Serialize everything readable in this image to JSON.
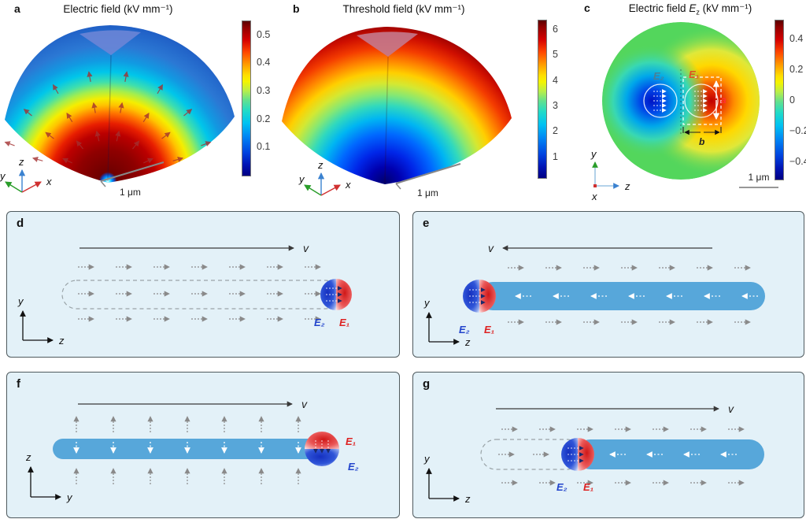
{
  "figure": {
    "top": {
      "a": {
        "letter": "a",
        "title": "Electric field (kV mm⁻¹)",
        "colorbar_ticks": [
          "0.5",
          "0.4",
          "0.3",
          "0.2",
          "0.1"
        ],
        "scale_bar": "1 μm",
        "axis_up": "z",
        "axis_right": "x",
        "axis_left": "y"
      },
      "b": {
        "letter": "b",
        "title": "Threshold field (kV mm⁻¹)",
        "colorbar_ticks": [
          "6",
          "5",
          "4",
          "3",
          "2",
          "1"
        ],
        "scale_bar": "1 μm",
        "axis_up": "z",
        "axis_right": "x",
        "axis_left": "y"
      },
      "c": {
        "letter": "c",
        "title_pre": "Electric field ",
        "title_var": "E",
        "title_var_sub": "z",
        "title_post": " (kV mm⁻¹)",
        "colorbar_ticks": [
          "0.4",
          "0.2",
          "0",
          "−0.2",
          "−0.4"
        ],
        "scale_bar": "1 μm",
        "label_e2": "E₂",
        "label_e1": "E₁",
        "dim_a": "a",
        "dim_b": "b",
        "axis_up": "y",
        "axis_right": "z",
        "axis_depth": "x"
      }
    },
    "bottom": {
      "d": {
        "letter": "d",
        "velocity": "v",
        "label_e2": "E₂",
        "label_e1": "E₁",
        "axis_up": "y",
        "axis_right": "z"
      },
      "e": {
        "letter": "e",
        "velocity": "v",
        "label_e2": "E₂",
        "label_e1": "E₁",
        "axis_up": "y",
        "axis_right": "z"
      },
      "f": {
        "letter": "f",
        "velocity": "v",
        "label_e1": "E₁",
        "label_e2": "E₂",
        "axis_up": "z",
        "axis_right": "y"
      },
      "g": {
        "letter": "g",
        "velocity": "v",
        "label_e2": "E₂",
        "label_e1": "E₁",
        "axis_up": "y",
        "axis_right": "z"
      }
    },
    "colors": {
      "panel_background": "#e3f1f8",
      "capsule_blue": "#57a7da",
      "e1_red": "#dd2222",
      "e2_blue": "#2244cc"
    }
  }
}
